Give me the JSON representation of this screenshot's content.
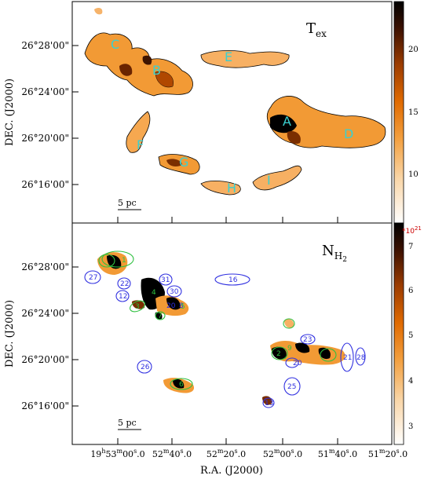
{
  "panels": {
    "top": {
      "title_main": "T",
      "title_sub": "ex",
      "ylabel": "DEC.  (J2000)",
      "yticks": [
        "26°28'00\"",
        "26°24'00\"",
        "26°20'00\"",
        "26°16'00\""
      ],
      "colorbar": {
        "ticks": [
          "20",
          "15",
          "10"
        ],
        "colors": [
          "#000000",
          "#7a2e00",
          "#d86000",
          "#f39a3a",
          "#f7c985",
          "#fdf1e0",
          "#ffffff"
        ]
      },
      "scalebar": "5 pc",
      "region_labels": [
        {
          "name": "C"
        },
        {
          "name": "B"
        },
        {
          "name": "E"
        },
        {
          "name": "A"
        },
        {
          "name": "D"
        },
        {
          "name": "F"
        },
        {
          "name": "G"
        },
        {
          "name": "H"
        },
        {
          "name": "I"
        }
      ]
    },
    "bottom": {
      "title_main": "N",
      "title_sub": "H",
      "title_subsub": "2",
      "ylabel": "DEC.  (J2000)",
      "yticks": [
        "26°28'00\"",
        "26°24'00\"",
        "26°20'00\"",
        "26°16'00\""
      ],
      "colorbar": {
        "ticks": [
          "7",
          "6",
          "5",
          "4",
          "3"
        ],
        "exponent": "*10",
        "exponent_power": "21",
        "colors": [
          "#000000",
          "#7a2e00",
          "#d86000",
          "#f39a3a",
          "#f7c985",
          "#fdf1e0",
          "#ffffff"
        ]
      },
      "scalebar": "5 pc",
      "xlabel": "R.A.  (J2000)",
      "xticks": [
        {
          "h": "19",
          "hs": "h",
          "m": "53",
          "ms": "m",
          "s": "00",
          "ss": "s",
          "f": ".0"
        },
        {
          "h": "",
          "hs": "",
          "m": "52",
          "ms": "m",
          "s": "40",
          "ss": "s",
          "f": ".0"
        },
        {
          "h": "",
          "hs": "",
          "m": "52",
          "ms": "m",
          "s": "20",
          "ss": "s",
          "f": ".0"
        },
        {
          "h": "",
          "hs": "",
          "m": "52",
          "ms": "m",
          "s": "00",
          "ss": "s",
          "f": ".0"
        },
        {
          "h": "",
          "hs": "",
          "m": "51",
          "ms": "m",
          "s": "40",
          "ss": "s",
          "f": ".0"
        },
        {
          "h": "",
          "hs": "",
          "m": "51",
          "ms": "m",
          "s": "20",
          "ss": "s",
          "f": ".0"
        }
      ],
      "clump_labels": [
        "27",
        "22",
        "12",
        "31",
        "30",
        "16",
        "26",
        "20",
        "8",
        "23",
        "21",
        "28",
        "20",
        "25",
        "13",
        "3",
        "6",
        "4",
        "7",
        "5",
        "9",
        "1",
        "2"
      ]
    }
  },
  "chart_data": [
    {
      "type": "heatmap",
      "title": "Tex",
      "ylabel": "DEC.  (J2000)",
      "yticks": [
        "26°28'00\"",
        "26°24'00\"",
        "26°20'00\"",
        "26°16'00\""
      ],
      "colorbar_range": [
        7,
        24
      ],
      "colorbar_ticks": [
        10,
        15,
        20
      ],
      "scalebar": "5 pc",
      "regions": [
        "A",
        "B",
        "C",
        "D",
        "E",
        "F",
        "G",
        "H",
        "I"
      ]
    },
    {
      "type": "heatmap",
      "title": "NH2",
      "xlabel": "R.A.  (J2000)",
      "ylabel": "DEC.  (J2000)",
      "xticks": [
        "19h53m00s.0",
        "52m40s.0",
        "52m20s.0",
        "52m00s.0",
        "51m40s.0",
        "51m20s.0"
      ],
      "yticks": [
        "26°28'00\"",
        "26°24'00\"",
        "26°20'00\"",
        "26°16'00\""
      ],
      "colorbar_range": [
        2.6,
        7.6
      ],
      "colorbar_ticks": [
        3,
        4,
        5,
        6,
        7
      ],
      "colorbar_unit": "*10^21",
      "scalebar": "5 pc",
      "clumps": [
        "1",
        "2",
        "3",
        "4",
        "5",
        "6",
        "7",
        "8",
        "9",
        "12",
        "13",
        "16",
        "20",
        "21",
        "22",
        "23",
        "25",
        "26",
        "27",
        "28",
        "30",
        "31"
      ]
    }
  ]
}
